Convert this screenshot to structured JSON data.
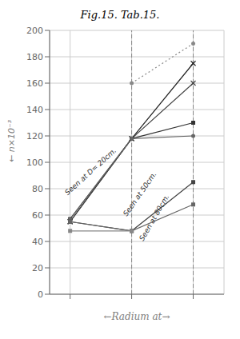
{
  "chart_data": {
    "type": "line",
    "title": "Fig.15. Tab.15.",
    "x_label": "←Radium at→",
    "y_label": "← n×10⁻³",
    "x": [
      20,
      50,
      80
    ],
    "xlim": [
      10,
      95
    ],
    "xticks": [
      20,
      50,
      80
    ],
    "ylim": [
      0,
      200
    ],
    "yticks": [
      0,
      20,
      40,
      60,
      80,
      100,
      120,
      140,
      160,
      180,
      200
    ],
    "grid": true,
    "tick_labels": "y",
    "vlines": [
      50,
      80
    ],
    "series": [
      {
        "color": "#222222",
        "marker": "x",
        "line_style": "solid",
        "values": [
          55,
          118,
          175
        ]
      },
      {
        "color": "#444444",
        "marker": "x",
        "line_style": "solid",
        "values": [
          55,
          118,
          160
        ]
      },
      {
        "color": "#333333",
        "marker": "square",
        "line_style": "solid",
        "values": [
          57,
          118,
          130
        ]
      },
      {
        "color": "#666666",
        "marker": "circle",
        "line_style": "solid",
        "values": [
          57,
          118,
          120
        ]
      },
      {
        "color": "#444444",
        "marker": "square",
        "line_style": "solid",
        "values": [
          55,
          48,
          85
        ]
      },
      {
        "color": "#666666",
        "marker": "square",
        "line_style": "solid",
        "values": [
          55,
          48,
          68
        ]
      },
      {
        "color": "#888888",
        "marker": "square",
        "line_style": "solid",
        "values": [
          48,
          48,
          null
        ]
      },
      {
        "color": "#888888",
        "marker": "circle",
        "line_style": "dotted",
        "values": [
          null,
          160,
          190
        ]
      }
    ],
    "annotations": [
      {
        "text": "Seen at D= 20cm.",
        "x": 30,
        "y": 93
      },
      {
        "text": "Seen at 50cm.",
        "x": 54,
        "y": 76
      },
      {
        "text": "Seen at 80cm.",
        "x": 61,
        "y": 58
      }
    ]
  }
}
